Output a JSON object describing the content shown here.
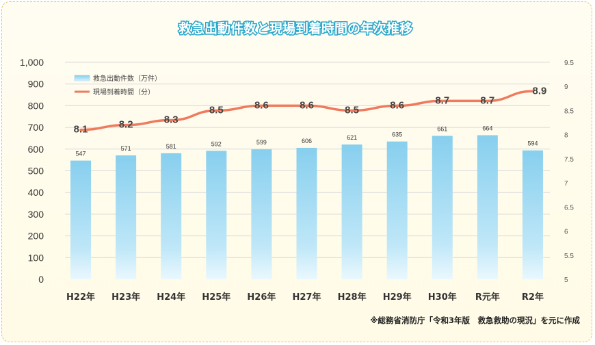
{
  "chart_data": {
    "type": "bar",
    "title": "救急出動件数と現場到着時間の年次推移",
    "categories": [
      "H22年",
      "H23年",
      "H24年",
      "H25年",
      "H26年",
      "H27年",
      "H28年",
      "H29年",
      "H30年",
      "R元年",
      "R2年"
    ],
    "series": [
      {
        "name": "救急出動件数（万件）",
        "type": "bar",
        "axis": "left",
        "values": [
          547,
          571,
          581,
          592,
          599,
          606,
          621,
          635,
          661,
          664,
          594
        ],
        "color": "#8fd3f0"
      },
      {
        "name": "現場到着時間（分）",
        "type": "line",
        "axis": "right",
        "values": [
          8.1,
          8.2,
          8.3,
          8.5,
          8.6,
          8.6,
          8.5,
          8.6,
          8.7,
          8.7,
          8.9
        ],
        "color": "#ef7a5e"
      }
    ],
    "ylim": [
      0,
      1000
    ],
    "yticks": [
      "0",
      "100",
      "200",
      "300",
      "400",
      "500",
      "600",
      "700",
      "800",
      "900",
      "1,000"
    ],
    "y2lim": [
      5,
      9.5
    ],
    "y2ticks": [
      "5",
      "5.5",
      "6",
      "6.5",
      "7",
      "7.5",
      "8",
      "8.5",
      "9",
      "9.5"
    ],
    "grid": true,
    "legend_position": "top-left",
    "source": "※総務省消防庁「令和3年版　救急救助の現況」を元に作成"
  }
}
